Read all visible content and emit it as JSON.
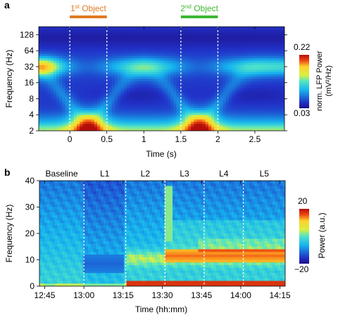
{
  "chart_data": [
    {
      "panel": "a",
      "type": "heatmap",
      "xlabel": "Time (s)",
      "ylabel": "Frequency (Hz)",
      "xlim": [
        -0.42,
        2.9
      ],
      "ylim": [
        2,
        181
      ],
      "y_scale": "log2",
      "x_ticks": [
        "0",
        "0.5",
        "1",
        "1.5",
        "2",
        "2.5"
      ],
      "x_tick_values": [
        0,
        0.5,
        1,
        1.5,
        2,
        2.5
      ],
      "y_ticks": [
        "2",
        "4",
        "8",
        "16",
        "32",
        "64",
        "128"
      ],
      "y_tick_values": [
        2,
        4,
        8,
        16,
        32,
        64,
        128
      ],
      "event_lines": [
        0,
        0.5,
        1.5,
        2
      ],
      "events": [
        {
          "label": "1",
          "sup": "st",
          "rest": " Object",
          "start": 0,
          "end": 0.5,
          "color": "#e07a20"
        },
        {
          "label": "2",
          "sup": "nd",
          "rest": " Object",
          "start": 1.5,
          "end": 2,
          "color": "#3cb832"
        }
      ],
      "colorbar": {
        "label_line1": "norm. LFP Power",
        "label_line2": "(mV²/Hz)",
        "max_label": "0.22",
        "min_label": "0.03",
        "range": [
          0.03,
          0.22
        ]
      }
    },
    {
      "panel": "b",
      "type": "heatmap",
      "xlabel": "Time (hh:mm)",
      "ylabel": "Frequency (Hz)",
      "xlim": [
        "12:43",
        "14:17"
      ],
      "ylim": [
        0,
        40
      ],
      "x_ticks": [
        "12:45",
        "13:00",
        "13:15",
        "13:30",
        "13:45",
        "14:00",
        "14:15"
      ],
      "y_ticks": [
        "0",
        "10",
        "20",
        "30",
        "40"
      ],
      "y_tick_values": [
        0,
        10,
        20,
        30,
        40
      ],
      "segments": [
        {
          "label": "Baseline",
          "start": "12:43",
          "end": "13:00"
        },
        {
          "label": "L1",
          "start": "13:00",
          "end": "13:16"
        },
        {
          "label": "L2",
          "start": "13:16",
          "end": "13:31"
        },
        {
          "label": "L3",
          "start": "13:31",
          "end": "13:46"
        },
        {
          "label": "L4",
          "start": "13:46",
          "end": "14:01"
        },
        {
          "label": "L5",
          "start": "14:01",
          "end": "14:17"
        }
      ],
      "colorbar": {
        "label": "Power (a.u.)",
        "max_label": "20",
        "min_label": "−20",
        "range": [
          -20,
          20
        ]
      }
    }
  ],
  "panel_labels": {
    "a": "a",
    "b": "b"
  }
}
